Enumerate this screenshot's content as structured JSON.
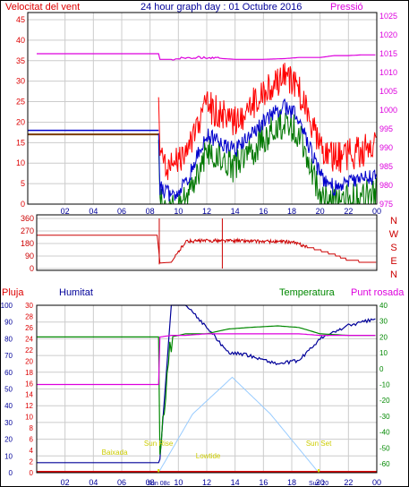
{
  "title": "24 hour graph day : 01 Octubre 2016",
  "colors": {
    "wind": "#dd0000",
    "gust": "#ff0000",
    "wind_avg": "#0000cc",
    "wind_low": "#007700",
    "pressure": "#dd00dd",
    "direction": "#cc0000",
    "rain": "#dd0000",
    "humidity": "#000099",
    "temperature": "#008800",
    "dewpoint": "#dd00dd",
    "solar": "#99ccff",
    "sun_marks": "#dddd00",
    "axes": "#000000"
  },
  "top": {
    "left_label": "Velocitat del vent",
    "right_label": "Pressió",
    "wind_ticks": [
      "0",
      "5",
      "10",
      "15",
      "20",
      "25",
      "30",
      "35",
      "40",
      "45"
    ],
    "pressure_ticks": [
      "975",
      "980",
      "985",
      "990",
      "995",
      "1000",
      "1005",
      "1010",
      "1015",
      "1020",
      "1025"
    ]
  },
  "mid": {
    "dir_ticks": [
      "0",
      "90",
      "180",
      "270",
      "360"
    ],
    "compass": [
      "N",
      "W",
      "S",
      "E",
      "N"
    ]
  },
  "bottom": {
    "rain_label": "Pluja",
    "humidity_label": "Humitat",
    "temp_label": "Temperatura",
    "dew_label": "Punt rosada",
    "hum_ticks": [
      "0",
      "10",
      "20",
      "30",
      "40",
      "50",
      "60",
      "70",
      "80",
      "90",
      "100"
    ],
    "rain_ticks": [
      "0",
      "2",
      "4",
      "6",
      "8",
      "10",
      "12",
      "14",
      "16",
      "18",
      "20",
      "22",
      "24",
      "26",
      "28",
      "30"
    ],
    "temp_ticks": [
      "-60",
      "-50",
      "-40",
      "-30",
      "-20",
      "-10",
      "0",
      "10",
      "20",
      "30",
      "40"
    ],
    "annotations": {
      "sunrise": "Sun Rise",
      "sunset": "Sun Set",
      "sunrise_time": "Sun 08c",
      "sunset_time": "Sun 20",
      "baixada": "Baixada",
      "lowtide": "Lowtide"
    }
  },
  "hour_labels": [
    "02",
    "04",
    "06",
    "08",
    "10",
    "12",
    "14",
    "16",
    "18",
    "20",
    "22",
    "00"
  ],
  "chart_data": [
    {
      "type": "line",
      "title": "24 hour graph day : 01 Octubre 2016",
      "x": [
        0,
        8.6,
        8.7,
        9.5,
        10.5,
        12,
        14,
        16,
        17.5,
        18.5,
        20,
        21,
        22,
        23,
        24
      ],
      "series": [
        {
          "name": "Velocitat del vent",
          "axis": "left",
          "values": [
            17,
            17,
            5,
            3,
            6,
            18,
            14,
            21,
            25,
            22,
            8,
            5,
            6,
            7,
            8
          ]
        },
        {
          "name": "Pressió",
          "axis": "right",
          "values": [
            1015,
            1015,
            1013.5,
            1013.5,
            1014,
            1014,
            1013.5,
            1013.5,
            1013.7,
            1014,
            1014,
            1014.5,
            1014.5,
            1014.7,
            1014.7
          ]
        }
      ],
      "ylim_left": [
        0,
        45
      ],
      "ylim_right": [
        975,
        1025
      ]
    },
    {
      "type": "scatter",
      "x": [
        0,
        8.5,
        8.7,
        9.5,
        10.5,
        12,
        14,
        16,
        18,
        19.5,
        21,
        22,
        23,
        24
      ],
      "series": [
        {
          "name": "Direcció",
          "values": [
            240,
            240,
            40,
            45,
            195,
            200,
            200,
            195,
            190,
            145,
            100,
            60,
            50,
            45
          ]
        }
      ],
      "ylim": [
        0,
        360
      ]
    },
    {
      "type": "line",
      "x": [
        0,
        8.6,
        8.7,
        9.5,
        10.5,
        12,
        13.5,
        15,
        17,
        18.5,
        20,
        22,
        24
      ],
      "series": [
        {
          "name": "Humitat",
          "axis": "left",
          "values": [
            6,
            6,
            8,
            100,
            100,
            87,
            72,
            70,
            65,
            67,
            80,
            88,
            92
          ]
        },
        {
          "name": "Temperatura",
          "axis": "right",
          "values": [
            20,
            20,
            -54,
            20,
            22,
            22,
            25,
            26,
            27,
            26,
            22,
            21,
            21
          ]
        },
        {
          "name": "Punt rosada",
          "axis": "right",
          "values": [
            -10,
            -10,
            20,
            21,
            21,
            22,
            22,
            22,
            22,
            22,
            21,
            21,
            21
          ]
        },
        {
          "name": "Pluja",
          "axis": "rain",
          "values": [
            0,
            0,
            0,
            0,
            0,
            0,
            0,
            0,
            0,
            0,
            0,
            0,
            0
          ]
        }
      ],
      "solar": {
        "x": [
          8.6,
          11,
          13.8,
          16.5,
          19.9
        ],
        "values": [
          0,
          35,
          57,
          35,
          0
        ]
      },
      "ylim_left": [
        0,
        100
      ],
      "ylim_rain": [
        0,
        30
      ],
      "ylim_right": [
        -60,
        40
      ]
    }
  ]
}
